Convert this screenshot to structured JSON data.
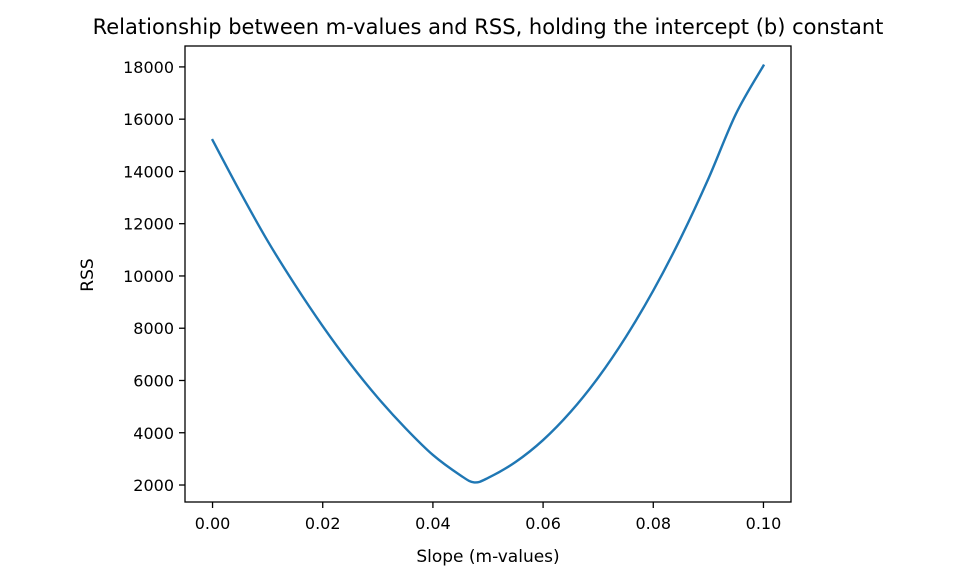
{
  "chart_data": {
    "type": "line",
    "title": "Relationship between m-values and RSS, holding the intercept (b) constant",
    "xlabel": "Slope (m-values)",
    "ylabel": "RSS",
    "xlim": [
      -0.005,
      0.105
    ],
    "ylim": [
      1350,
      18800
    ],
    "x_ticks": [
      0.0,
      0.02,
      0.04,
      0.06,
      0.08,
      0.1
    ],
    "x_tick_labels": [
      "0.00",
      "0.02",
      "0.04",
      "0.06",
      "0.08",
      "0.10"
    ],
    "y_ticks": [
      2000,
      4000,
      6000,
      8000,
      10000,
      12000,
      14000,
      16000,
      18000
    ],
    "y_tick_labels": [
      "2000",
      "4000",
      "6000",
      "8000",
      "10000",
      "12000",
      "14000",
      "16000",
      "18000"
    ],
    "grid": false,
    "legend": "none",
    "series": [
      {
        "color": "#1f77b4",
        "x": [
          0.0,
          0.005,
          0.01,
          0.015,
          0.02,
          0.025,
          0.03,
          0.035,
          0.04,
          0.045,
          0.0475,
          0.05,
          0.055,
          0.06,
          0.065,
          0.07,
          0.075,
          0.08,
          0.085,
          0.09,
          0.095,
          0.1
        ],
        "y": [
          15200,
          13220,
          11340,
          9650,
          8080,
          6640,
          5340,
          4180,
          3150,
          2370,
          2100,
          2270,
          2880,
          3720,
          4800,
          6110,
          7660,
          9440,
          11460,
          13720,
          16200,
          18050
        ]
      }
    ]
  }
}
